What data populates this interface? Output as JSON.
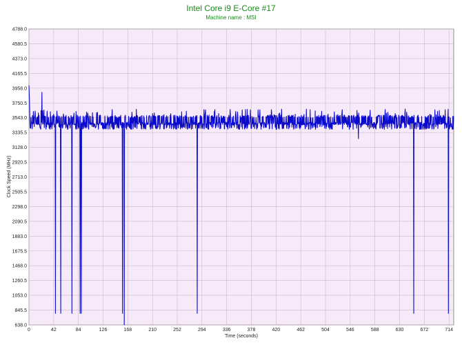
{
  "chart_data": {
    "type": "line",
    "title": "Intel Core i9 E-Core #17",
    "subtitle": "Machine name : MSI",
    "xlabel": "Time (seconds)",
    "ylabel": "Clock Speed (MHz)",
    "xlim": [
      0,
      722
    ],
    "ylim": [
      638.0,
      4788.0
    ],
    "x_ticks": [
      "0",
      "42",
      "84",
      "126",
      "168",
      "210",
      "252",
      "294",
      "336",
      "378",
      "420",
      "462",
      "504",
      "546",
      "588",
      "630",
      "672",
      "714"
    ],
    "y_ticks": [
      "638.0",
      "845.5",
      "1053.0",
      "1260.5",
      "1468.0",
      "1675.5",
      "1883.0",
      "2090.5",
      "2298.0",
      "2505.5",
      "2713.0",
      "2920.5",
      "3128.0",
      "3335.5",
      "3543.0",
      "3750.5",
      "3958.0",
      "4165.5",
      "4373.0",
      "4580.5",
      "4788.0"
    ],
    "grid": true,
    "colors": {
      "line": "#0a0acd",
      "plot_background": "#f7eaf8",
      "grid": "#c9b7c9",
      "title": "#1a8a1a"
    },
    "baseline": 3460,
    "noise_band": [
      3380,
      3580
    ],
    "series": [
      {
        "name": "",
        "start": {
          "x": 0,
          "y": 4000
        },
        "dips": [
          {
            "x": 22,
            "y": 3900
          },
          {
            "x": 45,
            "y": 800
          },
          {
            "x": 54,
            "y": 800
          },
          {
            "x": 73,
            "y": 800
          },
          {
            "x": 87,
            "y": 800
          },
          {
            "x": 89,
            "y": 800
          },
          {
            "x": 159,
            "y": 800
          },
          {
            "x": 162,
            "y": 638
          },
          {
            "x": 286,
            "y": 800
          },
          {
            "x": 560,
            "y": 3250
          },
          {
            "x": 654,
            "y": 800
          },
          {
            "x": 713,
            "y": 800
          }
        ]
      }
    ]
  }
}
